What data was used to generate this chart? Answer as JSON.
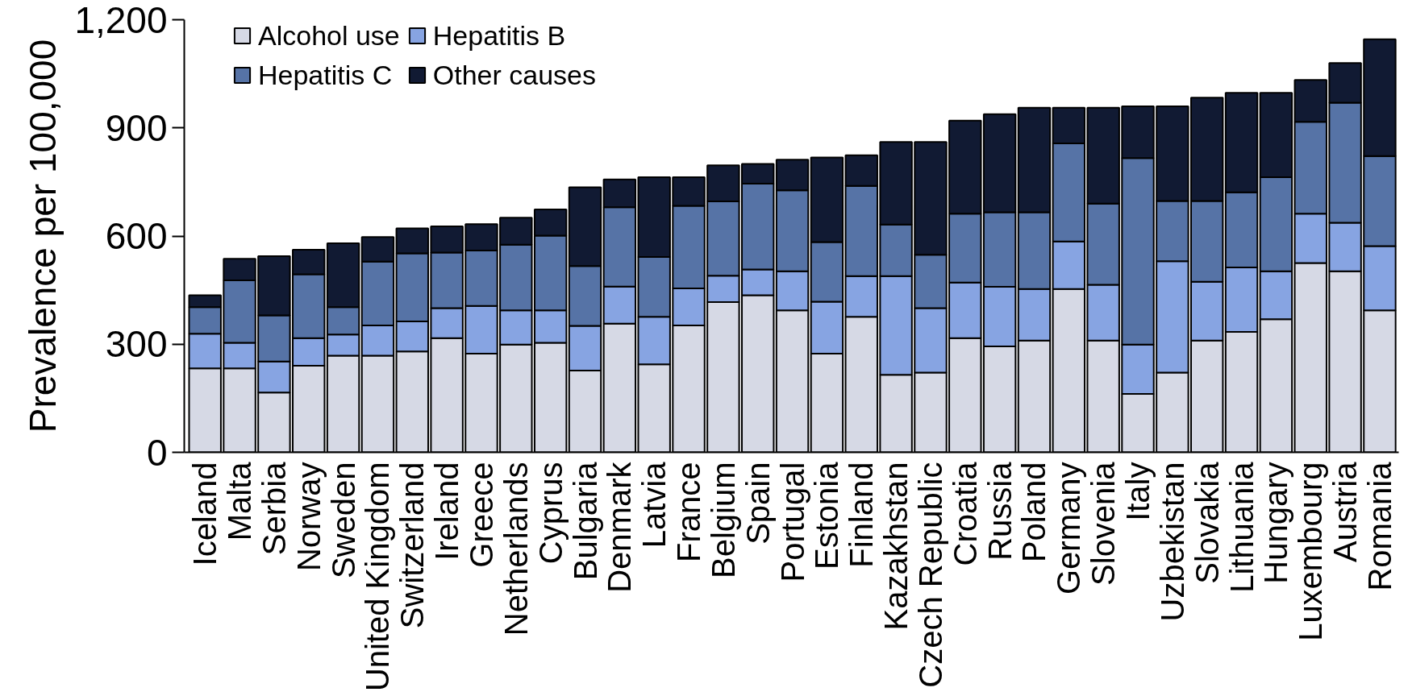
{
  "chart_data": {
    "type": "bar",
    "stacked": true,
    "ylabel": "Prevalence per 100,000",
    "legend": "top left",
    "categories": [
      "Iceland",
      "Malta",
      "Serbia",
      "Norway",
      "Sweden",
      "United Kingdom",
      "Switzerland",
      "Ireland",
      "Greece",
      "Netherlands",
      "Cyprus",
      "Bulgaria",
      "Denmark",
      "Latvia",
      "France",
      "Belgium",
      "Spain",
      "Portugal",
      "Estonia",
      "Finland",
      "Kazakhstan",
      "Czech Republic",
      "Croatia",
      "Russia",
      "Poland",
      "Germany",
      "Slovenia",
      "Italy",
      "Uzbekistan",
      "Slovakia",
      "Lithuania",
      "Hungary",
      "Luxembourg",
      "Austria",
      "Romania"
    ],
    "series": [
      {
        "name": "Alcohol use",
        "color": "#d6d9e5",
        "values": [
          233,
          233,
          166,
          240,
          268,
          268,
          280,
          317,
          274,
          299,
          304,
          227,
          357,
          244,
          352,
          417,
          436,
          394,
          274,
          376,
          215,
          221,
          317,
          294,
          310,
          453,
          310,
          162,
          221,
          310,
          334,
          369,
          525,
          502,
          394
        ]
      },
      {
        "name": "Hepatitis B",
        "color": "#87a4e2",
        "values": [
          96,
          71,
          86,
          77,
          59,
          84,
          83,
          83,
          132,
          95,
          90,
          124,
          103,
          132,
          103,
          73,
          71,
          108,
          144,
          113,
          274,
          179,
          154,
          165,
          143,
          132,
          155,
          137,
          309,
          163,
          179,
          133,
          137,
          135,
          178
        ]
      },
      {
        "name": "Hepatitis C",
        "color": "#5673a6",
        "values": [
          74,
          173,
          128,
          177,
          76,
          177,
          189,
          154,
          154,
          182,
          207,
          166,
          220,
          166,
          229,
          206,
          238,
          225,
          165,
          250,
          143,
          148,
          191,
          207,
          213,
          272,
          225,
          517,
          167,
          224,
          208,
          261,
          255,
          333,
          250
        ]
      },
      {
        "name": "Other causes",
        "color": "#111a33",
        "values": [
          33,
          60,
          164,
          68,
          177,
          68,
          69,
          73,
          73,
          75,
          73,
          218,
          77,
          221,
          79,
          100,
          55,
          85,
          235,
          85,
          229,
          313,
          258,
          272,
          290,
          99,
          266,
          144,
          263,
          287,
          276,
          234,
          116,
          110,
          324
        ]
      }
    ],
    "ylim": [
      0,
      1200
    ],
    "yticks": [
      0,
      300,
      600,
      900,
      {
        "value": 1200,
        "label": "1,200"
      }
    ]
  }
}
